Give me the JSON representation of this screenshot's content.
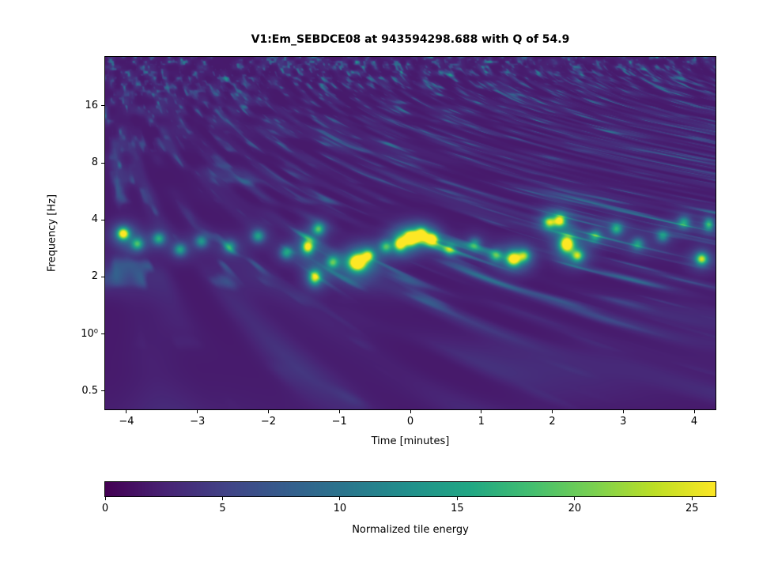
{
  "chart_data": {
    "type": "heatmap",
    "title": "V1:Em_SEBDCE08 at 943594298.688 with Q of 54.9",
    "xlabel": "Time [minutes]",
    "ylabel": "Frequency [Hz]",
    "xlim": [
      -4.3,
      4.3
    ],
    "ylim_hz": [
      0.4,
      29
    ],
    "yscale": "log",
    "grid": false,
    "xticks": [
      {
        "v": -4,
        "label": "−4"
      },
      {
        "v": -3,
        "label": "−3"
      },
      {
        "v": -2,
        "label": "−2"
      },
      {
        "v": -1,
        "label": "−1"
      },
      {
        "v": 0,
        "label": "0"
      },
      {
        "v": 1,
        "label": "1"
      },
      {
        "v": 2,
        "label": "2"
      },
      {
        "v": 3,
        "label": "3"
      },
      {
        "v": 4,
        "label": "4"
      }
    ],
    "yticks": [
      {
        "v": 16,
        "label": "16"
      },
      {
        "v": 8,
        "label": "8"
      },
      {
        "v": 4,
        "label": "4"
      },
      {
        "v": 2,
        "label": "2"
      },
      {
        "v": 1,
        "label": "10⁰"
      },
      {
        "v": 0.5,
        "label": "0.5"
      }
    ],
    "colorbar": {
      "label": "Normalized tile energy",
      "min": 0,
      "max": 26,
      "ticks": [
        {
          "v": 0,
          "label": "0"
        },
        {
          "v": 5,
          "label": "5"
        },
        {
          "v": 10,
          "label": "10"
        },
        {
          "v": 15,
          "label": "15"
        },
        {
          "v": 20,
          "label": "20"
        },
        {
          "v": 25,
          "label": "25"
        }
      ]
    },
    "colormap": "viridis",
    "colormap_stops": [
      "#440154",
      "#482475",
      "#414487",
      "#355f8d",
      "#2a788e",
      "#21918c",
      "#22a884",
      "#44bf70",
      "#7ad151",
      "#bddf26",
      "#fde725"
    ],
    "background_color": "#ffffff",
    "hotspots": [
      {
        "t": -4.05,
        "f": 3.4,
        "e": 21,
        "sx": 5,
        "sy": 5
      },
      {
        "t": -3.85,
        "f": 3.0,
        "e": 12,
        "sx": 5,
        "sy": 5
      },
      {
        "t": -3.55,
        "f": 3.2,
        "e": 11,
        "sx": 5,
        "sy": 5
      },
      {
        "t": -3.25,
        "f": 2.8,
        "e": 10,
        "sx": 5,
        "sy": 5
      },
      {
        "t": -2.95,
        "f": 3.1,
        "e": 9,
        "sx": 5,
        "sy": 5
      },
      {
        "t": -2.55,
        "f": 2.9,
        "e": 9,
        "sx": 5,
        "sy": 5
      },
      {
        "t": -2.15,
        "f": 3.3,
        "e": 10,
        "sx": 5,
        "sy": 5
      },
      {
        "t": -1.75,
        "f": 2.7,
        "e": 10,
        "sx": 5,
        "sy": 5
      },
      {
        "t": -1.45,
        "f": 2.9,
        "e": 20,
        "sx": 5,
        "sy": 6
      },
      {
        "t": -1.35,
        "f": 2.0,
        "e": 18,
        "sx": 5,
        "sy": 6
      },
      {
        "t": -1.3,
        "f": 3.6,
        "e": 13,
        "sx": 5,
        "sy": 5
      },
      {
        "t": -1.1,
        "f": 2.4,
        "e": 12,
        "sx": 5,
        "sy": 5
      },
      {
        "t": -0.75,
        "f": 2.4,
        "e": 26,
        "sx": 7,
        "sy": 7
      },
      {
        "t": -0.6,
        "f": 2.6,
        "e": 16,
        "sx": 5,
        "sy": 5
      },
      {
        "t": -0.35,
        "f": 2.9,
        "e": 11,
        "sx": 5,
        "sy": 5
      },
      {
        "t": -0.15,
        "f": 3.0,
        "e": 19,
        "sx": 5,
        "sy": 6
      },
      {
        "t": 0.0,
        "f": 3.2,
        "e": 23,
        "sx": 6,
        "sy": 6
      },
      {
        "t": 0.15,
        "f": 3.4,
        "e": 18,
        "sx": 5,
        "sy": 5
      },
      {
        "t": 0.3,
        "f": 3.2,
        "e": 17,
        "sx": 5,
        "sy": 5
      },
      {
        "t": 0.55,
        "f": 2.8,
        "e": 10,
        "sx": 5,
        "sy": 5
      },
      {
        "t": 0.9,
        "f": 3.0,
        "e": 9,
        "sx": 5,
        "sy": 5
      },
      {
        "t": 1.2,
        "f": 2.6,
        "e": 10,
        "sx": 5,
        "sy": 5
      },
      {
        "t": 1.45,
        "f": 2.5,
        "e": 21,
        "sx": 6,
        "sy": 6
      },
      {
        "t": 1.6,
        "f": 2.6,
        "e": 13,
        "sx": 5,
        "sy": 5
      },
      {
        "t": 1.95,
        "f": 3.9,
        "e": 14,
        "sx": 5,
        "sy": 5
      },
      {
        "t": 2.1,
        "f": 4.0,
        "e": 18,
        "sx": 5,
        "sy": 5
      },
      {
        "t": 2.2,
        "f": 3.0,
        "e": 24,
        "sx": 6,
        "sy": 7
      },
      {
        "t": 2.35,
        "f": 2.6,
        "e": 15,
        "sx": 5,
        "sy": 5
      },
      {
        "t": 2.6,
        "f": 3.3,
        "e": 10,
        "sx": 5,
        "sy": 5
      },
      {
        "t": 2.9,
        "f": 3.6,
        "e": 11,
        "sx": 5,
        "sy": 5
      },
      {
        "t": 3.2,
        "f": 3.0,
        "e": 9,
        "sx": 5,
        "sy": 5
      },
      {
        "t": 3.55,
        "f": 3.3,
        "e": 9,
        "sx": 5,
        "sy": 5
      },
      {
        "t": 3.85,
        "f": 3.9,
        "e": 10,
        "sx": 5,
        "sy": 5
      },
      {
        "t": 4.1,
        "f": 2.5,
        "e": 17,
        "sx": 5,
        "sy": 5
      },
      {
        "t": 4.2,
        "f": 3.8,
        "e": 12,
        "sx": 4,
        "sy": 5
      }
    ]
  }
}
